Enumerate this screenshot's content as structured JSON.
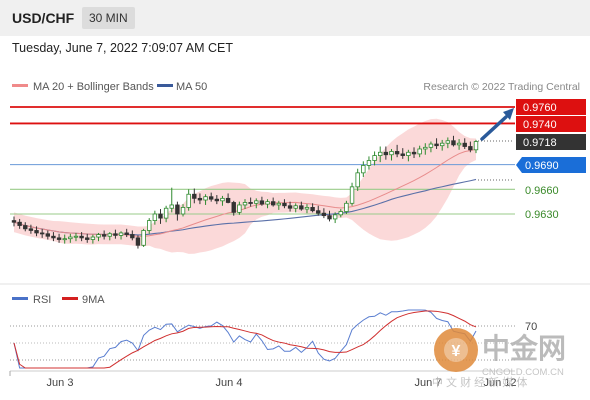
{
  "header": {
    "symbol": "USD/CHF",
    "timeframe": "30 MIN"
  },
  "datetime": "Tuesday, June 7, 2022 7:09:07 AM CET",
  "main_legend": [
    {
      "label": "MA 20 + Bollinger Bands",
      "color": "#f08a8a"
    },
    {
      "label": "MA 50",
      "color": "#3a5a9a"
    }
  ],
  "copyright": "Research © 2022 Trading Central",
  "rsi_legend": [
    {
      "label": "RSI",
      "color": "#4a72c8"
    },
    {
      "label": "9MA",
      "color": "#d42020"
    }
  ],
  "x_axis_labels": [
    "Jun 3",
    "Jun 4",
    "Jun 7",
    "Jun 12"
  ],
  "price_tags": [
    {
      "value": "0.9760",
      "color": "#dd1010",
      "text_color": "#ffffff"
    },
    {
      "value": "0.9740",
      "color": "#dd1010",
      "text_color": "#ffffff"
    },
    {
      "value": "0.9718",
      "color": "#333333",
      "text_color": "#ffffff"
    },
    {
      "value": "0.9690",
      "color": "#1a6ed8",
      "text_color": "#ffffff"
    },
    {
      "value": "0.9660",
      "color": "transparent",
      "text_color": "#3a8a2a"
    },
    {
      "value": "0.9630",
      "color": "transparent",
      "text_color": "#3a8a2a"
    }
  ],
  "rsi_level_label": "70",
  "watermark": {
    "brand": "中金网",
    "url": "CNGOLD.COM.CN",
    "tagline": "中 文 财 经 新 媒 体"
  },
  "chart_data": {
    "type": "candlestick",
    "series": [
      {
        "name": "MA 20 + Bollinger Bands"
      },
      {
        "name": "MA 50"
      }
    ],
    "levels": [
      {
        "value": 0.976,
        "color": "#dd1010"
      },
      {
        "value": 0.974,
        "color": "#dd1010"
      },
      {
        "value": 0.969,
        "color": "#6a9ad8"
      },
      {
        "value": 0.966,
        "color": "#9acb8a"
      },
      {
        "value": 0.963,
        "color": "#9acb8a"
      }
    ],
    "last_price": 0.9718,
    "candles": [
      [
        0.9622,
        0.9627,
        0.9615,
        0.962
      ],
      [
        0.962,
        0.9624,
        0.9612,
        0.9616
      ],
      [
        0.9616,
        0.962,
        0.9609,
        0.9612
      ],
      [
        0.9612,
        0.9617,
        0.9606,
        0.961
      ],
      [
        0.961,
        0.9615,
        0.9603,
        0.9607
      ],
      [
        0.9607,
        0.9612,
        0.9601,
        0.9606
      ],
      [
        0.9606,
        0.961,
        0.9599,
        0.9603
      ],
      [
        0.9603,
        0.9608,
        0.9597,
        0.9601
      ],
      [
        0.9601,
        0.9606,
        0.9595,
        0.9599
      ],
      [
        0.9599,
        0.9605,
        0.9594,
        0.96
      ],
      [
        0.96,
        0.9606,
        0.9595,
        0.9602
      ],
      [
        0.9602,
        0.9607,
        0.9597,
        0.9603
      ],
      [
        0.9603,
        0.9608,
        0.9597,
        0.9601
      ],
      [
        0.9601,
        0.9606,
        0.9595,
        0.9599
      ],
      [
        0.9599,
        0.9605,
        0.9594,
        0.9602
      ],
      [
        0.9602,
        0.9607,
        0.9597,
        0.9605
      ],
      [
        0.9605,
        0.961,
        0.9599,
        0.9603
      ],
      [
        0.9603,
        0.9608,
        0.9598,
        0.9606
      ],
      [
        0.9606,
        0.9611,
        0.96,
        0.9604
      ],
      [
        0.9604,
        0.9609,
        0.9599,
        0.9607
      ],
      [
        0.9607,
        0.9612,
        0.9602,
        0.9605
      ],
      [
        0.9605,
        0.961,
        0.9598,
        0.9601
      ],
      [
        0.9601,
        0.9604,
        0.9588,
        0.9592
      ],
      [
        0.9592,
        0.9612,
        0.959,
        0.961
      ],
      [
        0.961,
        0.9625,
        0.9606,
        0.9622
      ],
      [
        0.9622,
        0.9634,
        0.9617,
        0.963
      ],
      [
        0.963,
        0.9636,
        0.9618,
        0.9625
      ],
      [
        0.9625,
        0.964,
        0.962,
        0.9637
      ],
      [
        0.9637,
        0.9662,
        0.9632,
        0.9641
      ],
      [
        0.9641,
        0.9645,
        0.9622,
        0.963
      ],
      [
        0.963,
        0.9642,
        0.9627,
        0.9638
      ],
      [
        0.9638,
        0.966,
        0.9634,
        0.9654
      ],
      [
        0.9654,
        0.9661,
        0.9643,
        0.9649
      ],
      [
        0.9649,
        0.9655,
        0.9642,
        0.9647
      ],
      [
        0.9647,
        0.9654,
        0.9641,
        0.9651
      ],
      [
        0.9651,
        0.9656,
        0.9645,
        0.9648
      ],
      [
        0.9648,
        0.9653,
        0.9642,
        0.9646
      ],
      [
        0.9646,
        0.9652,
        0.964,
        0.9649
      ],
      [
        0.9649,
        0.9655,
        0.9643,
        0.9644
      ],
      [
        0.9644,
        0.9646,
        0.9628,
        0.9632
      ],
      [
        0.9632,
        0.9645,
        0.9629,
        0.9641
      ],
      [
        0.9641,
        0.9648,
        0.9636,
        0.9644
      ],
      [
        0.9644,
        0.965,
        0.9639,
        0.9643
      ],
      [
        0.9643,
        0.9649,
        0.9637,
        0.9646
      ],
      [
        0.9646,
        0.9651,
        0.964,
        0.9642
      ],
      [
        0.9642,
        0.9648,
        0.9637,
        0.9645
      ],
      [
        0.9645,
        0.965,
        0.9639,
        0.9641
      ],
      [
        0.9641,
        0.9646,
        0.9635,
        0.9643
      ],
      [
        0.9643,
        0.9648,
        0.9637,
        0.964
      ],
      [
        0.964,
        0.9645,
        0.9633,
        0.9637
      ],
      [
        0.9637,
        0.9643,
        0.9632,
        0.964
      ],
      [
        0.964,
        0.9645,
        0.9634,
        0.9636
      ],
      [
        0.9636,
        0.9642,
        0.9631,
        0.9638
      ],
      [
        0.9638,
        0.9643,
        0.9632,
        0.9634
      ],
      [
        0.9634,
        0.964,
        0.9628,
        0.9631
      ],
      [
        0.9631,
        0.9637,
        0.9625,
        0.9628
      ],
      [
        0.9628,
        0.9634,
        0.9621,
        0.9624
      ],
      [
        0.9624,
        0.9632,
        0.9619,
        0.9629
      ],
      [
        0.9629,
        0.9636,
        0.9626,
        0.9633
      ],
      [
        0.9633,
        0.9646,
        0.963,
        0.9643
      ],
      [
        0.9643,
        0.9668,
        0.964,
        0.9663
      ],
      [
        0.9663,
        0.9685,
        0.9658,
        0.968
      ],
      [
        0.968,
        0.9694,
        0.9675,
        0.9689
      ],
      [
        0.9689,
        0.97,
        0.9684,
        0.9695
      ],
      [
        0.9695,
        0.9706,
        0.9689,
        0.9701
      ],
      [
        0.9701,
        0.9712,
        0.9693,
        0.9705
      ],
      [
        0.9705,
        0.9712,
        0.9696,
        0.9702
      ],
      [
        0.9702,
        0.9709,
        0.9695,
        0.9706
      ],
      [
        0.9706,
        0.9714,
        0.9699,
        0.9703
      ],
      [
        0.9703,
        0.971,
        0.9697,
        0.9701
      ],
      [
        0.9701,
        0.9708,
        0.9694,
        0.9705
      ],
      [
        0.9705,
        0.9711,
        0.9698,
        0.9703
      ],
      [
        0.9703,
        0.9713,
        0.9699,
        0.9709
      ],
      [
        0.9709,
        0.9716,
        0.9702,
        0.9711
      ],
      [
        0.9711,
        0.9718,
        0.9705,
        0.9715
      ],
      [
        0.9715,
        0.9722,
        0.9709,
        0.9713
      ],
      [
        0.9713,
        0.972,
        0.9707,
        0.9716
      ],
      [
        0.9716,
        0.9723,
        0.971,
        0.9719
      ],
      [
        0.9719,
        0.9725,
        0.9712,
        0.9714
      ],
      [
        0.9714,
        0.9721,
        0.9708,
        0.9716
      ],
      [
        0.9716,
        0.9722,
        0.9709,
        0.9712
      ],
      [
        0.9712,
        0.9718,
        0.9705,
        0.9708
      ],
      [
        0.9708,
        0.972,
        0.9704,
        0.9718
      ]
    ]
  }
}
